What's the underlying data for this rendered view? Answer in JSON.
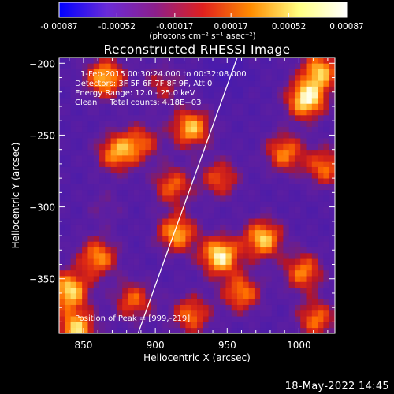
{
  "chart_data": {
    "type": "heatmap",
    "title": "Reconstructed RHESSI Image",
    "xlabel": "Heliocentric X (arcsec)",
    "ylabel": "Heliocentric Y (arcsec)",
    "xlim": [
      833,
      1025
    ],
    "ylim": [
      -388,
      -196
    ],
    "xticks": [
      850,
      900,
      950,
      1000
    ],
    "xtick_labels": [
      "850",
      "900",
      "950",
      "1000"
    ],
    "yticks": [
      -350,
      -300,
      -250,
      -200
    ],
    "ytick_labels": [
      "−350",
      "−300",
      "−250",
      "−200"
    ],
    "colorbar": {
      "range": [
        -0.00087,
        0.00087
      ],
      "ticks": [
        -0.00087,
        -0.00052,
        -0.00017,
        0.00017,
        0.00052,
        0.00087
      ],
      "tick_labels": [
        "-0.00087",
        "-0.00052",
        "-0.00017",
        "0.00017",
        "0.00052",
        "0.00087"
      ],
      "units": "(photons cm⁻² s⁻¹ asec⁻²)",
      "colors": [
        "#0000ff",
        "#6a2bd8",
        "#8c1f8c",
        "#e0201e",
        "#ff8c00",
        "#ffff80",
        "#ffffff"
      ]
    },
    "annotations": [
      "1-Feb-2015 00:30:24.000 to 00:32:08.000",
      "Detectors: 3F 5F 6F 7F 8F 9F, Att 0",
      "Energy Range: 12.0 - 25.0 keV",
      "Clean     Total counts: 4.18E+03"
    ],
    "peak_label": "Position of Peak = [999,-219]",
    "limb_line": [
      [
        888,
        -388
      ],
      [
        957,
        -196
      ]
    ],
    "blobs": [
      {
        "x": 865,
        "y": -210,
        "v": 0.75
      },
      {
        "x": 873,
        "y": -262,
        "v": 0.6
      },
      {
        "x": 890,
        "y": -255,
        "v": 0.35
      },
      {
        "x": 925,
        "y": -245,
        "v": 0.75
      },
      {
        "x": 912,
        "y": -285,
        "v": 0.45
      },
      {
        "x": 945,
        "y": -280,
        "v": 0.4
      },
      {
        "x": 1005,
        "y": -225,
        "v": 0.95
      },
      {
        "x": 1015,
        "y": -205,
        "v": 0.7
      },
      {
        "x": 990,
        "y": -262,
        "v": 0.55
      },
      {
        "x": 1018,
        "y": -272,
        "v": 0.5
      },
      {
        "x": 945,
        "y": -334,
        "v": 0.95
      },
      {
        "x": 915,
        "y": -318,
        "v": 0.7
      },
      {
        "x": 975,
        "y": -322,
        "v": 0.8
      },
      {
        "x": 1003,
        "y": -345,
        "v": 0.55
      },
      {
        "x": 860,
        "y": -335,
        "v": 0.6
      },
      {
        "x": 840,
        "y": -358,
        "v": 0.85
      },
      {
        "x": 845,
        "y": -385,
        "v": 0.8
      },
      {
        "x": 885,
        "y": -365,
        "v": 0.45
      },
      {
        "x": 925,
        "y": -375,
        "v": 0.5
      },
      {
        "x": 960,
        "y": -360,
        "v": 0.55
      },
      {
        "x": 1012,
        "y": -378,
        "v": 0.5
      },
      {
        "x": 865,
        "y": -300,
        "v": -0.1
      },
      {
        "x": 950,
        "y": -206,
        "v": -0.6
      },
      {
        "x": 905,
        "y": -215,
        "v": 0.15
      }
    ]
  },
  "footer": {
    "timestamp": "18-May-2022 14:45"
  }
}
